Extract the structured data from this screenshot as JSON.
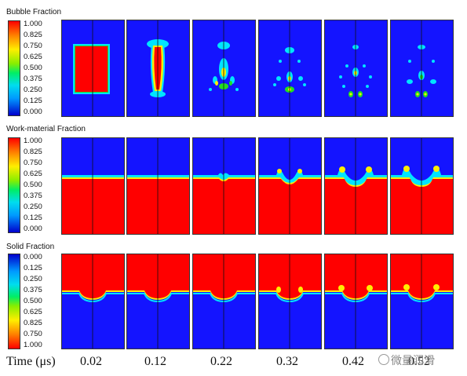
{
  "rows": [
    {
      "title": "Bubble Fraction",
      "ticks": [
        "1.000",
        "0.825",
        "0.750",
        "0.625",
        "0.500",
        "0.375",
        "0.250",
        "0.125",
        "0.000"
      ],
      "reversed": false
    },
    {
      "title": "Work-material Fraction",
      "ticks": [
        "1.000",
        "0.825",
        "0.750",
        "0.625",
        "0.500",
        "0.375",
        "0.250",
        "0.125",
        "0.000"
      ],
      "reversed": false
    },
    {
      "title": "Solid Fraction",
      "ticks": [
        "0.000",
        "0.125",
        "0.250",
        "0.375",
        "0.500",
        "0.625",
        "0.825",
        "0.750",
        "1.000"
      ],
      "reversed": true
    }
  ],
  "time_label": "Time (μs)",
  "times": [
    "0.02",
    "0.12",
    "0.22",
    "0.32",
    "0.42",
    "0.52"
  ],
  "watermark": "微量润滑",
  "colors": {
    "blue": "#1414ff",
    "red": "#ff0000",
    "cyan": "#00e5ff",
    "green": "#22dd22",
    "yellow": "#ffee00"
  }
}
